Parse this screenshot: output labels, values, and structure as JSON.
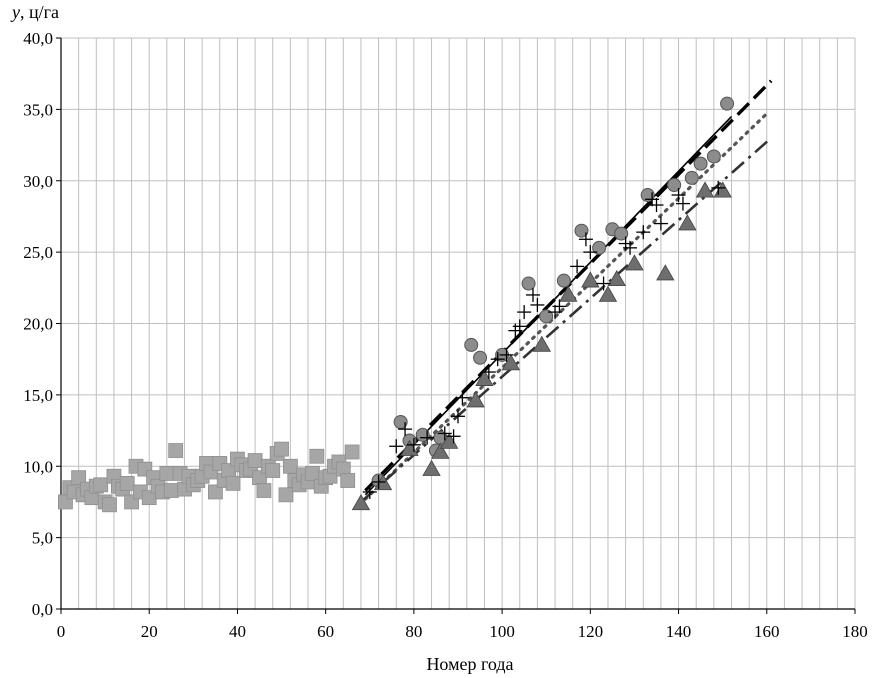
{
  "chart_data": {
    "type": "scatter",
    "title": "",
    "xlabel": "Номер года",
    "ylabel_var": "y",
    "ylabel_unit": ", ц/га",
    "xlim": [
      0,
      180
    ],
    "ylim": [
      0,
      40
    ],
    "x_ticks": [
      0,
      20,
      40,
      60,
      80,
      100,
      120,
      140,
      160,
      180
    ],
    "x_tick_labels": [
      "0",
      "20",
      "40",
      "60",
      "80",
      "100",
      "120",
      "140",
      "160",
      "180"
    ],
    "y_ticks": [
      0,
      5,
      10,
      15,
      20,
      25,
      30,
      35,
      40
    ],
    "y_tick_labels": [
      "0,0",
      "5,0",
      "10,0",
      "15,0",
      "20,0",
      "25,0",
      "30,0",
      "35,0",
      "40,0"
    ],
    "grid": true,
    "minor_x_step": 4,
    "colors": {
      "squares": "#a6a6a6",
      "circles": "#8c8c8c",
      "triangles": "#6e6e6e",
      "crosses": "#000000",
      "grid": "#bfbfbf",
      "axis": "#000000"
    },
    "series": [
      {
        "marker": "square",
        "points": [
          [
            1,
            7.5
          ],
          [
            2,
            8.5
          ],
          [
            3,
            8.2
          ],
          [
            4,
            9.2
          ],
          [
            5,
            8.0
          ],
          [
            6,
            8.4
          ],
          [
            7,
            7.8
          ],
          [
            8,
            8.6
          ],
          [
            9,
            8.7
          ],
          [
            10,
            7.5
          ],
          [
            11,
            7.3
          ],
          [
            12,
            9.3
          ],
          [
            13,
            8.6
          ],
          [
            14,
            8.4
          ],
          [
            15,
            8.8
          ],
          [
            16,
            7.5
          ],
          [
            17,
            10.0
          ],
          [
            18,
            8.2
          ],
          [
            19,
            9.8
          ],
          [
            20,
            7.8
          ],
          [
            21,
            9.2
          ],
          [
            22,
            8.6
          ],
          [
            23,
            8.2
          ],
          [
            24,
            9.5
          ],
          [
            25,
            8.3
          ],
          [
            26,
            11.1
          ],
          [
            27,
            9.5
          ],
          [
            28,
            8.4
          ],
          [
            29,
            9.3
          ],
          [
            30,
            8.7
          ],
          [
            31,
            9.0
          ],
          [
            32,
            9.3
          ],
          [
            33,
            10.2
          ],
          [
            34,
            9.6
          ],
          [
            35,
            8.2
          ],
          [
            36,
            10.2
          ],
          [
            37,
            9.0
          ],
          [
            38,
            9.7
          ],
          [
            39,
            8.8
          ],
          [
            40,
            10.5
          ],
          [
            41,
            10.1
          ],
          [
            42,
            9.7
          ],
          [
            43,
            9.8
          ],
          [
            44,
            10.4
          ],
          [
            45,
            9.2
          ],
          [
            46,
            8.3
          ],
          [
            47,
            10.0
          ],
          [
            48,
            9.7
          ],
          [
            49,
            10.9
          ],
          [
            50,
            11.2
          ],
          [
            51,
            8.0
          ],
          [
            52,
            10.0
          ],
          [
            53,
            9.0
          ],
          [
            54,
            8.7
          ],
          [
            55,
            9.4
          ],
          [
            56,
            8.9
          ],
          [
            57,
            9.5
          ],
          [
            58,
            10.7
          ],
          [
            59,
            8.6
          ],
          [
            60,
            9.2
          ],
          [
            61,
            9.3
          ],
          [
            62,
            10.0
          ],
          [
            63,
            10.3
          ],
          [
            64,
            9.8
          ],
          [
            65,
            9.0
          ],
          [
            66,
            11.0
          ]
        ]
      },
      {
        "marker": "circle",
        "points": [
          [
            72,
            9.0
          ],
          [
            77,
            13.1
          ],
          [
            79,
            11.8
          ],
          [
            82,
            12.2
          ],
          [
            85,
            11.1
          ],
          [
            86,
            12.0
          ],
          [
            93,
            18.5
          ],
          [
            95,
            17.6
          ],
          [
            100,
            17.8
          ],
          [
            106,
            22.8
          ],
          [
            110,
            20.5
          ],
          [
            114,
            23.0
          ],
          [
            118,
            26.5
          ],
          [
            122,
            25.3
          ],
          [
            125,
            26.6
          ],
          [
            127,
            26.3
          ],
          [
            133,
            29.0
          ],
          [
            139,
            29.7
          ],
          [
            143,
            30.2
          ],
          [
            145,
            31.2
          ],
          [
            148,
            31.7
          ],
          [
            151,
            35.4
          ]
        ]
      },
      {
        "marker": "triangle",
        "points": [
          [
            68,
            7.4
          ],
          [
            73,
            8.8
          ],
          [
            79,
            11.2
          ],
          [
            84,
            9.8
          ],
          [
            86,
            11.0
          ],
          [
            88,
            11.7
          ],
          [
            94,
            14.6
          ],
          [
            96,
            16.1
          ],
          [
            102,
            17.2
          ],
          [
            109,
            18.5
          ],
          [
            115,
            22.0
          ],
          [
            120,
            23.0
          ],
          [
            124,
            22.0
          ],
          [
            126,
            23.1
          ],
          [
            130,
            24.2
          ],
          [
            137,
            23.5
          ],
          [
            142,
            27.0
          ],
          [
            146,
            29.3
          ],
          [
            150,
            29.3
          ]
        ]
      },
      {
        "marker": "cross",
        "points": [
          [
            70,
            8.2
          ],
          [
            72,
            8.9
          ],
          [
            76,
            11.4
          ],
          [
            78,
            12.6
          ],
          [
            80,
            11.5
          ],
          [
            83,
            12.0
          ],
          [
            87,
            12.3
          ],
          [
            89,
            12.1
          ],
          [
            90,
            13.5
          ],
          [
            91,
            14.8
          ],
          [
            97,
            16.6
          ],
          [
            99,
            17.5
          ],
          [
            101,
            17.8
          ],
          [
            103,
            19.5
          ],
          [
            104,
            19.8
          ],
          [
            105,
            20.8
          ],
          [
            107,
            22.0
          ],
          [
            108,
            21.3
          ],
          [
            112,
            20.8
          ],
          [
            113,
            21.2
          ],
          [
            117,
            24.0
          ],
          [
            119,
            25.9
          ],
          [
            120,
            25.0
          ],
          [
            123,
            22.8
          ],
          [
            128,
            25.6
          ],
          [
            129,
            25.3
          ],
          [
            132,
            26.4
          ],
          [
            134,
            28.7
          ],
          [
            135,
            28.3
          ],
          [
            136,
            27.0
          ],
          [
            140,
            29.0
          ],
          [
            141,
            28.4
          ],
          [
            149,
            29.5
          ]
        ]
      }
    ],
    "trend_lines": [
      {
        "style": "solid",
        "x": [
          69,
          152
        ],
        "y": [
          8.0,
          34.5
        ]
      },
      {
        "style": "dash",
        "x": [
          69,
          161
        ],
        "y": [
          8.3,
          37.0
        ]
      },
      {
        "style": "dot",
        "x": [
          69,
          160
        ],
        "y": [
          7.7,
          34.7
        ]
      },
      {
        "style": "dash-dot",
        "x": [
          68,
          161
        ],
        "y": [
          7.5,
          33.0
        ]
      }
    ]
  }
}
